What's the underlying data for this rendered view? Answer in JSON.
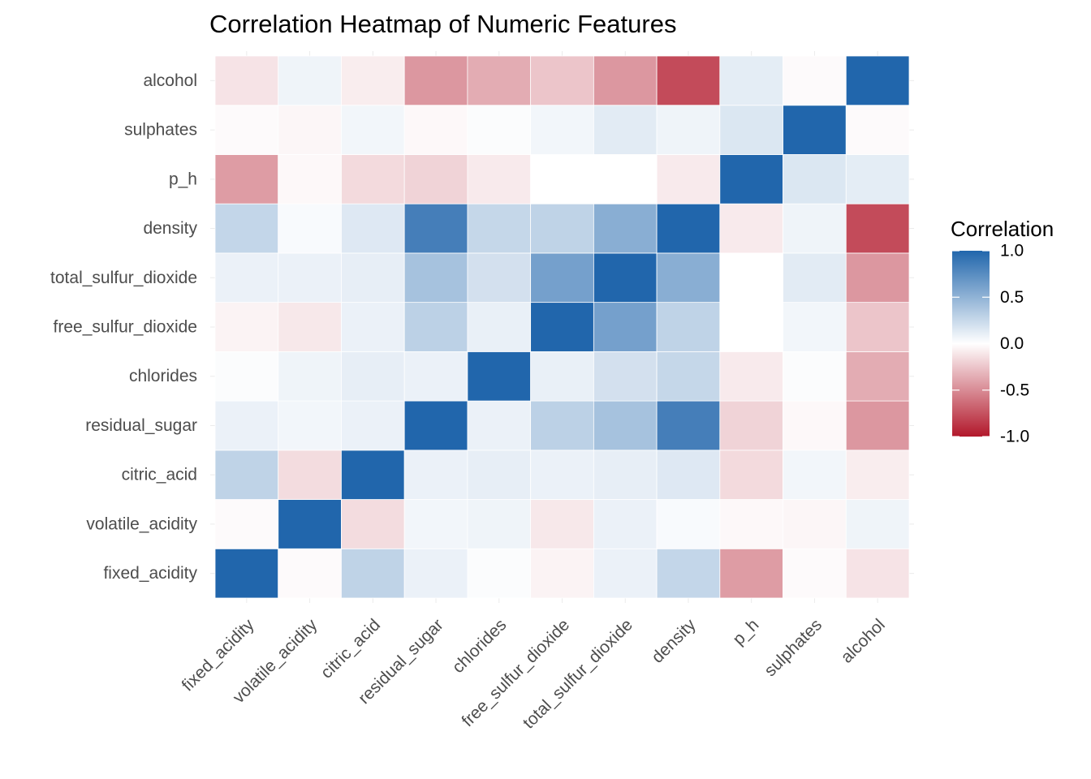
{
  "chart_data": {
    "type": "heatmap",
    "title": "Correlation Heatmap of Numeric Features",
    "xlabel": "",
    "ylabel": "",
    "variables": [
      "fixed_acidity",
      "volatile_acidity",
      "citric_acid",
      "residual_sugar",
      "chlorides",
      "free_sulfur_dioxide",
      "total_sulfur_dioxide",
      "density",
      "p_h",
      "sulphates",
      "alcohol"
    ],
    "x_categories": [
      "fixed_acidity",
      "volatile_acidity",
      "citric_acid",
      "residual_sugar",
      "chlorides",
      "free_sulfur_dioxide",
      "total_sulfur_dioxide",
      "density",
      "p_h",
      "sulphates",
      "alcohol"
    ],
    "y_categories_bottom_to_top": [
      "fixed_acidity",
      "volatile_acidity",
      "citric_acid",
      "residual_sugar",
      "chlorides",
      "free_sulfur_dioxide",
      "total_sulfur_dioxide",
      "density",
      "p_h",
      "sulphates",
      "alcohol"
    ],
    "matrix": [
      [
        1.0,
        -0.02,
        0.29,
        0.09,
        0.02,
        -0.05,
        0.09,
        0.27,
        -0.43,
        -0.02,
        -0.12
      ],
      [
        -0.02,
        1.0,
        -0.15,
        0.06,
        0.07,
        -0.1,
        0.09,
        0.03,
        -0.03,
        -0.04,
        0.07
      ],
      [
        0.29,
        -0.15,
        1.0,
        0.09,
        0.11,
        0.09,
        0.11,
        0.15,
        -0.16,
        0.06,
        -0.08
      ],
      [
        0.09,
        0.06,
        0.09,
        1.0,
        0.09,
        0.3,
        0.4,
        0.84,
        -0.19,
        -0.03,
        -0.45
      ],
      [
        0.02,
        0.07,
        0.11,
        0.09,
        1.0,
        0.1,
        0.2,
        0.26,
        -0.09,
        0.02,
        -0.36
      ],
      [
        -0.05,
        -0.1,
        0.09,
        0.3,
        0.1,
        1.0,
        0.62,
        0.29,
        null,
        0.06,
        -0.25
      ],
      [
        0.09,
        0.09,
        0.11,
        0.4,
        0.2,
        0.62,
        1.0,
        0.53,
        null,
        0.13,
        -0.45
      ],
      [
        0.27,
        0.03,
        0.15,
        0.84,
        0.26,
        0.29,
        0.53,
        1.0,
        -0.09,
        0.07,
        -0.78
      ],
      [
        -0.43,
        -0.03,
        -0.16,
        -0.19,
        -0.09,
        null,
        null,
        -0.09,
        1.0,
        0.16,
        0.12
      ],
      [
        -0.02,
        -0.04,
        0.06,
        -0.03,
        0.02,
        0.06,
        0.13,
        0.07,
        0.16,
        1.0,
        -0.02
      ],
      [
        -0.12,
        0.07,
        -0.08,
        -0.45,
        -0.36,
        -0.25,
        -0.45,
        -0.78,
        0.12,
        -0.02,
        1.0
      ]
    ],
    "legend": {
      "title": "Correlation",
      "ticks": [
        1.0,
        0.5,
        0.0,
        -0.5,
        -1.0
      ],
      "tick_labels": [
        "1.0",
        "0.5",
        "0.0",
        "-0.5",
        "-1.0"
      ],
      "placement": "right"
    },
    "color_scale": {
      "range": [
        -1,
        1
      ],
      "low": "#b2182b",
      "mid": "#ffffff",
      "high": "#2166ac"
    },
    "missing_color": "#ffffff",
    "grid": true
  }
}
